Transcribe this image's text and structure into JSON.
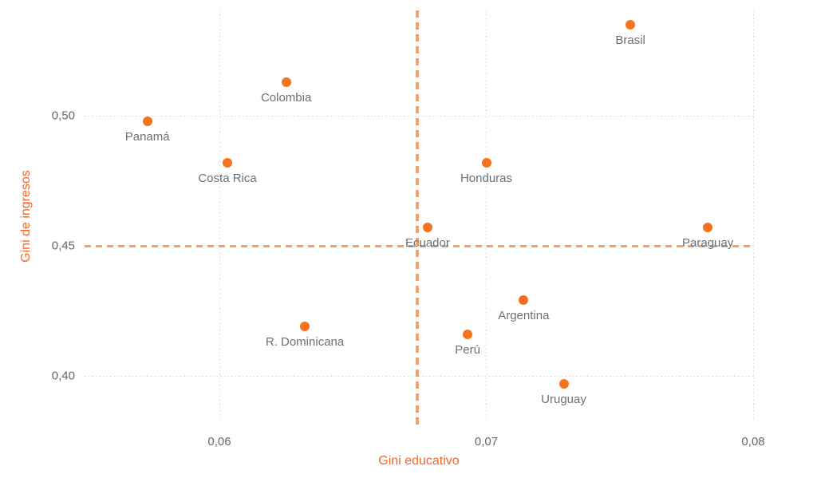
{
  "chart_data": {
    "type": "scatter",
    "title": "",
    "xlabel": "Gini educativo",
    "ylabel": "Gini de ingresos",
    "grid": true,
    "legend": false,
    "xlim": [
      0.055,
      0.0805
    ],
    "ylim": [
      0.388,
      0.545
    ],
    "x_axis": {
      "ticks": [
        {
          "value": 0.06,
          "label": "0,06"
        },
        {
          "value": 0.07,
          "label": "0,07"
        },
        {
          "value": 0.08,
          "label": "0,08"
        }
      ]
    },
    "y_axis": {
      "ticks": [
        {
          "value": 0.5,
          "label": "0,50"
        },
        {
          "value": 0.45,
          "label": "0,45"
        },
        {
          "value": 0.4,
          "label": "0,40"
        }
      ]
    },
    "points": [
      {
        "label": "Brasil",
        "x": 0.0754,
        "y": 0.535
      },
      {
        "label": "Colombia",
        "x": 0.0625,
        "y": 0.513
      },
      {
        "label": "Panamá",
        "x": 0.0573,
        "y": 0.498
      },
      {
        "label": "Costa Rica",
        "x": 0.0603,
        "y": 0.482
      },
      {
        "label": "Honduras",
        "x": 0.07,
        "y": 0.482
      },
      {
        "label": "Ecuador",
        "x": 0.0678,
        "y": 0.457
      },
      {
        "label": "Paraguay",
        "x": 0.0783,
        "y": 0.457
      },
      {
        "label": "Argentina",
        "x": 0.0714,
        "y": 0.429
      },
      {
        "label": "R. Dominicana",
        "x": 0.0632,
        "y": 0.419
      },
      {
        "label": "Perú",
        "x": 0.0693,
        "y": 0.416
      },
      {
        "label": "Uruguay",
        "x": 0.0729,
        "y": 0.397
      }
    ],
    "reference_lines": {
      "vertical_x": 0.0674,
      "horizontal_y": 0.45
    },
    "colors": {
      "point": "#f4731c",
      "reference_line": "#f7a265",
      "axis_title": "#f2672a",
      "tick_label": "#666666",
      "point_label": "#6b7077",
      "gridline": "#d9d9d9"
    }
  }
}
